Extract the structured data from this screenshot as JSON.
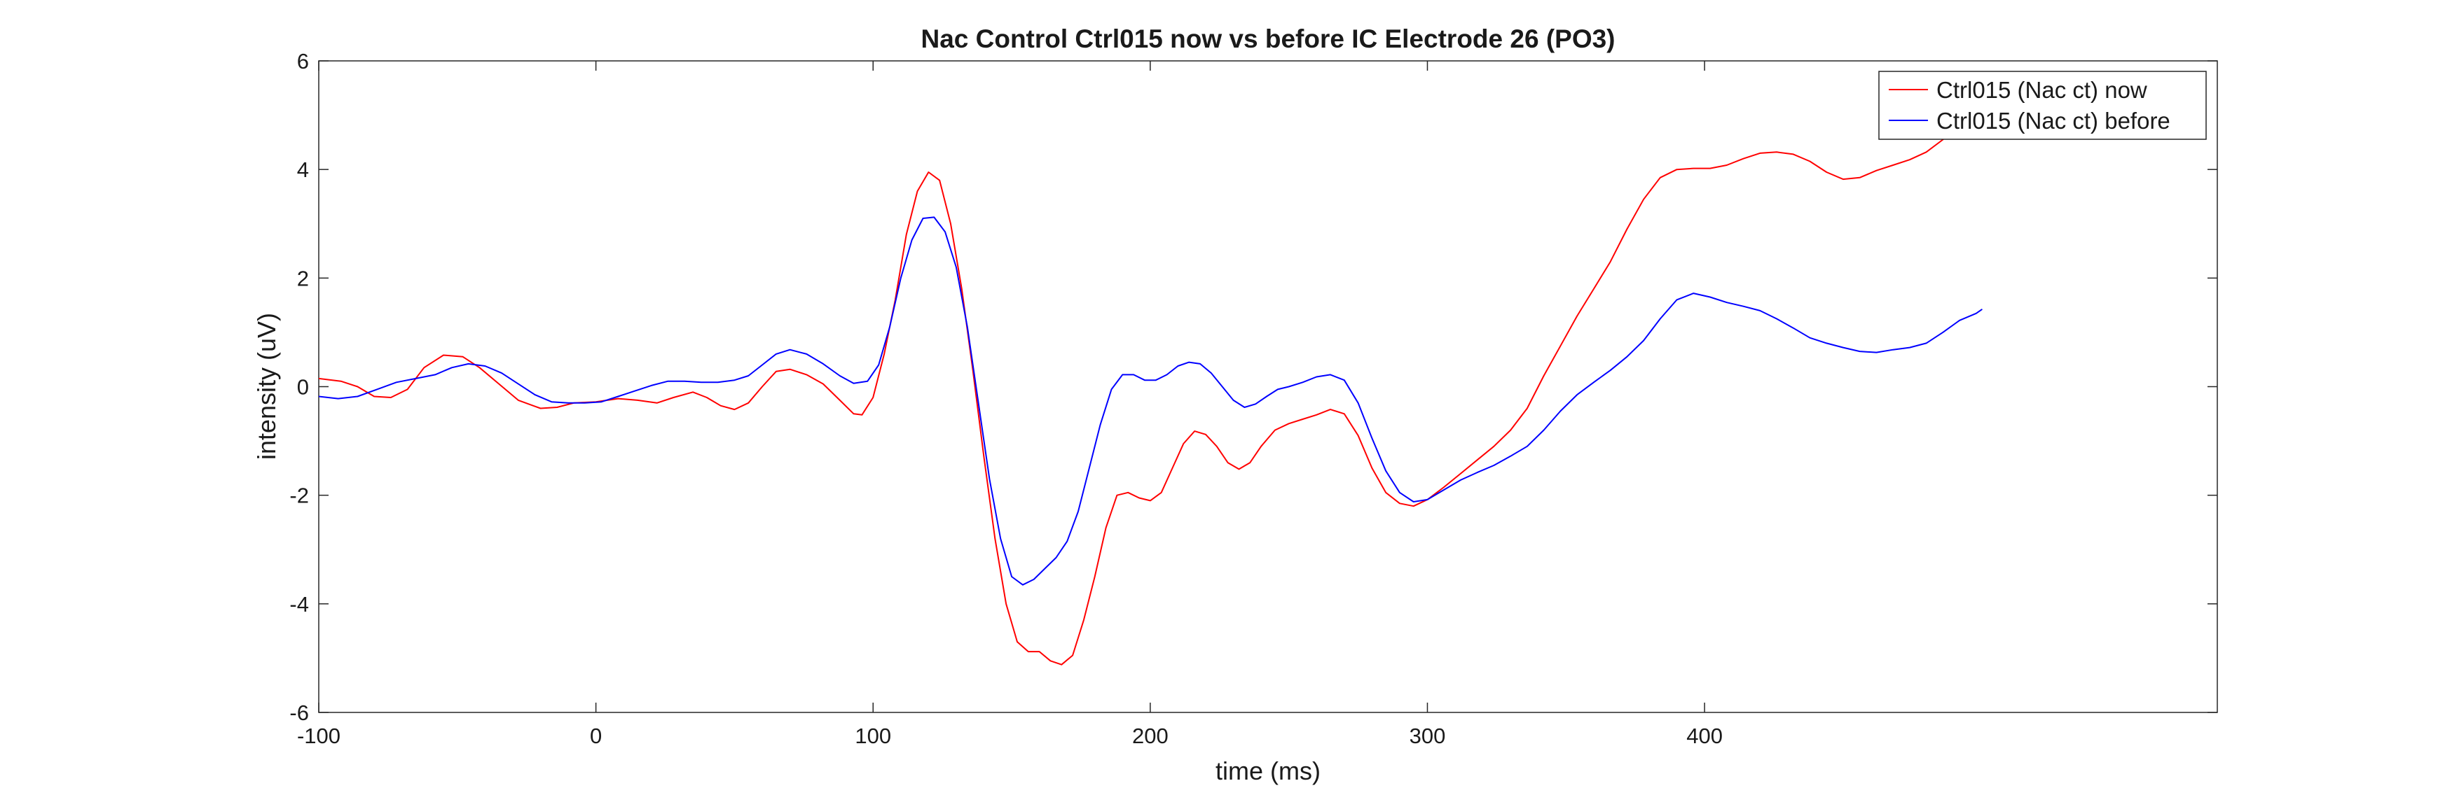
{
  "chart_data": {
    "type": "line",
    "title": "Nac Control Ctrl015 now vs before IC Electrode 26 (PO3)",
    "xlabel": "time (ms)",
    "ylabel": "intensity (uV)",
    "xlim": [
      -100,
      585
    ],
    "ylim": [
      -6,
      6
    ],
    "xticks": [
      -100,
      0,
      100,
      200,
      300,
      400
    ],
    "yticks": [
      -6,
      -4,
      -2,
      0,
      2,
      4,
      6
    ],
    "grid": false,
    "legend_position": "top-right",
    "series": [
      {
        "name": "Ctrl015 (Nac ct) now",
        "color": "#ff0000",
        "points": [
          [
            -100,
            0.15
          ],
          [
            -92,
            0.1
          ],
          [
            -86,
            0.0
          ],
          [
            -80,
            -0.18
          ],
          [
            -74,
            -0.2
          ],
          [
            -68,
            -0.05
          ],
          [
            -62,
            0.35
          ],
          [
            -55,
            0.58
          ],
          [
            -48,
            0.55
          ],
          [
            -42,
            0.35
          ],
          [
            -35,
            0.05
          ],
          [
            -28,
            -0.25
          ],
          [
            -20,
            -0.4
          ],
          [
            -14,
            -0.38
          ],
          [
            -8,
            -0.3
          ],
          [
            0,
            -0.28
          ],
          [
            8,
            -0.22
          ],
          [
            15,
            -0.25
          ],
          [
            22,
            -0.3
          ],
          [
            28,
            -0.2
          ],
          [
            35,
            -0.1
          ],
          [
            40,
            -0.2
          ],
          [
            45,
            -0.35
          ],
          [
            50,
            -0.42
          ],
          [
            55,
            -0.3
          ],
          [
            60,
            0.0
          ],
          [
            65,
            0.28
          ],
          [
            70,
            0.32
          ],
          [
            76,
            0.22
          ],
          [
            82,
            0.05
          ],
          [
            88,
            -0.25
          ],
          [
            93,
            -0.5
          ],
          [
            96,
            -0.52
          ],
          [
            100,
            -0.2
          ],
          [
            104,
            0.6
          ],
          [
            108,
            1.6
          ],
          [
            112,
            2.8
          ],
          [
            116,
            3.6
          ],
          [
            120,
            3.95
          ],
          [
            124,
            3.8
          ],
          [
            128,
            3.0
          ],
          [
            132,
            1.8
          ],
          [
            136,
            0.3
          ],
          [
            140,
            -1.3
          ],
          [
            144,
            -2.8
          ],
          [
            148,
            -4.0
          ],
          [
            152,
            -4.7
          ],
          [
            156,
            -4.88
          ],
          [
            160,
            -4.88
          ],
          [
            164,
            -5.05
          ],
          [
            168,
            -5.12
          ],
          [
            172,
            -4.95
          ],
          [
            176,
            -4.3
          ],
          [
            180,
            -3.5
          ],
          [
            184,
            -2.6
          ],
          [
            188,
            -2.0
          ],
          [
            192,
            -1.95
          ],
          [
            196,
            -2.05
          ],
          [
            200,
            -2.1
          ],
          [
            204,
            -1.95
          ],
          [
            208,
            -1.5
          ],
          [
            212,
            -1.05
          ],
          [
            216,
            -0.82
          ],
          [
            220,
            -0.88
          ],
          [
            224,
            -1.1
          ],
          [
            228,
            -1.4
          ],
          [
            232,
            -1.52
          ],
          [
            236,
            -1.4
          ],
          [
            240,
            -1.1
          ],
          [
            245,
            -0.8
          ],
          [
            250,
            -0.68
          ],
          [
            255,
            -0.6
          ],
          [
            260,
            -0.52
          ],
          [
            265,
            -0.42
          ],
          [
            270,
            -0.5
          ],
          [
            275,
            -0.9
          ],
          [
            280,
            -1.5
          ],
          [
            285,
            -1.95
          ],
          [
            290,
            -2.15
          ],
          [
            295,
            -2.2
          ],
          [
            300,
            -2.08
          ],
          [
            306,
            -1.85
          ],
          [
            312,
            -1.6
          ],
          [
            318,
            -1.35
          ],
          [
            324,
            -1.1
          ],
          [
            330,
            -0.8
          ],
          [
            336,
            -0.4
          ],
          [
            342,
            0.2
          ],
          [
            348,
            0.75
          ],
          [
            354,
            1.3
          ],
          [
            360,
            1.8
          ],
          [
            366,
            2.3
          ],
          [
            372,
            2.9
          ],
          [
            378,
            3.45
          ],
          [
            384,
            3.85
          ],
          [
            390,
            4.0
          ],
          [
            396,
            4.02
          ],
          [
            402,
            4.02
          ],
          [
            408,
            4.08
          ],
          [
            414,
            4.2
          ],
          [
            420,
            4.3
          ],
          [
            426,
            4.32
          ],
          [
            432,
            4.28
          ],
          [
            438,
            4.15
          ],
          [
            444,
            3.95
          ],
          [
            450,
            3.82
          ],
          [
            456,
            3.85
          ],
          [
            462,
            3.98
          ],
          [
            468,
            4.08
          ],
          [
            474,
            4.18
          ],
          [
            480,
            4.32
          ],
          [
            486,
            4.55
          ],
          [
            492,
            4.82
          ],
          [
            498,
            5.05
          ]
        ]
      },
      {
        "name": "Ctrl015 (Nac ct) before",
        "color": "#0000ff",
        "points": [
          [
            -100,
            -0.18
          ],
          [
            -93,
            -0.22
          ],
          [
            -86,
            -0.18
          ],
          [
            -79,
            -0.05
          ],
          [
            -72,
            0.08
          ],
          [
            -65,
            0.15
          ],
          [
            -58,
            0.22
          ],
          [
            -52,
            0.35
          ],
          [
            -46,
            0.42
          ],
          [
            -40,
            0.38
          ],
          [
            -34,
            0.25
          ],
          [
            -28,
            0.05
          ],
          [
            -22,
            -0.15
          ],
          [
            -16,
            -0.28
          ],
          [
            -10,
            -0.3
          ],
          [
            -4,
            -0.3
          ],
          [
            2,
            -0.28
          ],
          [
            8,
            -0.18
          ],
          [
            14,
            -0.08
          ],
          [
            20,
            0.02
          ],
          [
            26,
            0.1
          ],
          [
            32,
            0.1
          ],
          [
            38,
            0.08
          ],
          [
            44,
            0.08
          ],
          [
            50,
            0.12
          ],
          [
            55,
            0.2
          ],
          [
            60,
            0.4
          ],
          [
            65,
            0.6
          ],
          [
            70,
            0.68
          ],
          [
            76,
            0.6
          ],
          [
            82,
            0.42
          ],
          [
            88,
            0.2
          ],
          [
            93,
            0.06
          ],
          [
            98,
            0.1
          ],
          [
            102,
            0.4
          ],
          [
            106,
            1.1
          ],
          [
            110,
            2.0
          ],
          [
            114,
            2.7
          ],
          [
            118,
            3.1
          ],
          [
            122,
            3.12
          ],
          [
            126,
            2.85
          ],
          [
            130,
            2.2
          ],
          [
            134,
            1.1
          ],
          [
            138,
            -0.3
          ],
          [
            142,
            -1.7
          ],
          [
            146,
            -2.8
          ],
          [
            150,
            -3.5
          ],
          [
            154,
            -3.65
          ],
          [
            158,
            -3.55
          ],
          [
            162,
            -3.35
          ],
          [
            166,
            -3.15
          ],
          [
            170,
            -2.85
          ],
          [
            174,
            -2.3
          ],
          [
            178,
            -1.5
          ],
          [
            182,
            -0.7
          ],
          [
            186,
            -0.05
          ],
          [
            190,
            0.22
          ],
          [
            194,
            0.22
          ],
          [
            198,
            0.12
          ],
          [
            202,
            0.12
          ],
          [
            206,
            0.22
          ],
          [
            210,
            0.38
          ],
          [
            214,
            0.45
          ],
          [
            218,
            0.42
          ],
          [
            222,
            0.25
          ],
          [
            226,
            0.0
          ],
          [
            230,
            -0.25
          ],
          [
            234,
            -0.38
          ],
          [
            238,
            -0.32
          ],
          [
            242,
            -0.18
          ],
          [
            246,
            -0.05
          ],
          [
            250,
            0.0
          ],
          [
            255,
            0.08
          ],
          [
            260,
            0.18
          ],
          [
            265,
            0.22
          ],
          [
            270,
            0.12
          ],
          [
            275,
            -0.3
          ],
          [
            280,
            -0.95
          ],
          [
            285,
            -1.55
          ],
          [
            290,
            -1.95
          ],
          [
            295,
            -2.12
          ],
          [
            300,
            -2.08
          ],
          [
            306,
            -1.9
          ],
          [
            312,
            -1.72
          ],
          [
            318,
            -1.58
          ],
          [
            324,
            -1.45
          ],
          [
            330,
            -1.28
          ],
          [
            336,
            -1.1
          ],
          [
            342,
            -0.8
          ],
          [
            348,
            -0.45
          ],
          [
            354,
            -0.15
          ],
          [
            360,
            0.08
          ],
          [
            366,
            0.3
          ],
          [
            372,
            0.55
          ],
          [
            378,
            0.85
          ],
          [
            384,
            1.25
          ],
          [
            390,
            1.6
          ],
          [
            396,
            1.72
          ],
          [
            402,
            1.65
          ],
          [
            408,
            1.55
          ],
          [
            414,
            1.48
          ],
          [
            420,
            1.4
          ],
          [
            426,
            1.25
          ],
          [
            432,
            1.08
          ],
          [
            438,
            0.9
          ],
          [
            444,
            0.8
          ],
          [
            450,
            0.72
          ],
          [
            456,
            0.65
          ],
          [
            462,
            0.63
          ],
          [
            468,
            0.68
          ],
          [
            474,
            0.72
          ],
          [
            480,
            0.8
          ],
          [
            486,
            1.0
          ],
          [
            492,
            1.22
          ],
          [
            498,
            1.35
          ],
          [
            500,
            1.42
          ]
        ]
      }
    ]
  }
}
